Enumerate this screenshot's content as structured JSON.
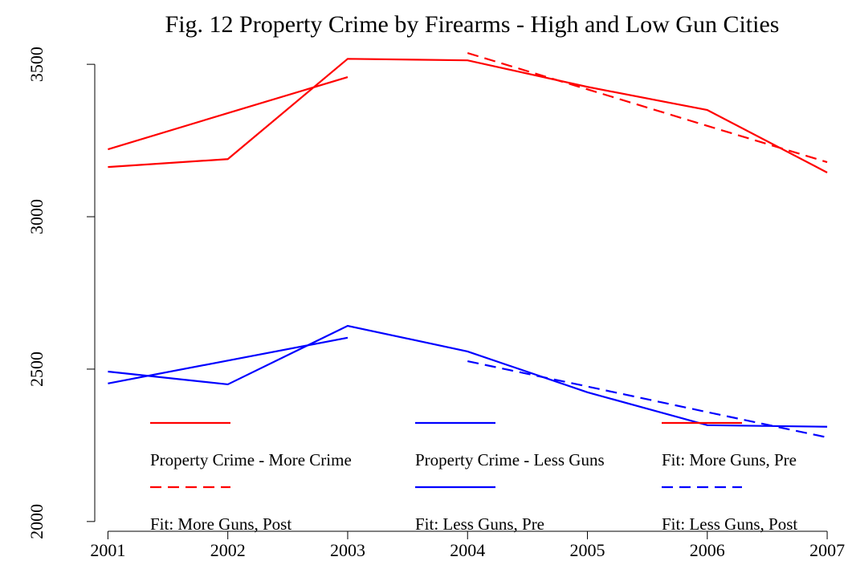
{
  "chart_data": {
    "type": "line",
    "title": "Fig. 12 Property Crime by Firearms - High and Low Gun Cities",
    "x": [
      2001,
      2002,
      2003,
      2004,
      2005,
      2006,
      2007
    ],
    "xlim": [
      2000.89,
      2007.1
    ],
    "xticks": [
      2001,
      2002,
      2003,
      2004,
      2005,
      2006,
      2007
    ],
    "ylim": [
      1968,
      3553
    ],
    "yticks": [
      2000,
      2500,
      3000,
      3500
    ],
    "grid": false,
    "legend": "bottom",
    "series": [
      {
        "name": "Property Crime - More Crime",
        "color": "#ff0000",
        "dash": false,
        "values": [
          3163,
          3189,
          3518,
          3513,
          3426,
          3350,
          3145
        ]
      },
      {
        "name": "Property Crime - Less Guns",
        "color": "#0000ff",
        "dash": false,
        "values": [
          2492,
          2450,
          2642,
          2558,
          2424,
          2316,
          2311
        ]
      },
      {
        "name": "Fit: More Guns, Pre",
        "color": "#ff0000",
        "dash": false,
        "values": [
          3221,
          3340,
          3458,
          null,
          null,
          null,
          null
        ]
      },
      {
        "name": "Fit: More Guns, Post",
        "color": "#ff0000",
        "dash": true,
        "values": [
          null,
          null,
          null,
          3537,
          3418,
          3298,
          3179
        ]
      },
      {
        "name": "Fit: Less Guns, Pre",
        "color": "#0000ff",
        "dash": false,
        "values": [
          2453,
          2528,
          2603,
          null,
          null,
          null,
          null
        ]
      },
      {
        "name": "Fit: Less Guns, Post",
        "color": "#0000ff",
        "dash": true,
        "values": [
          null,
          null,
          null,
          2526,
          2443,
          2359,
          2276
        ]
      }
    ]
  }
}
